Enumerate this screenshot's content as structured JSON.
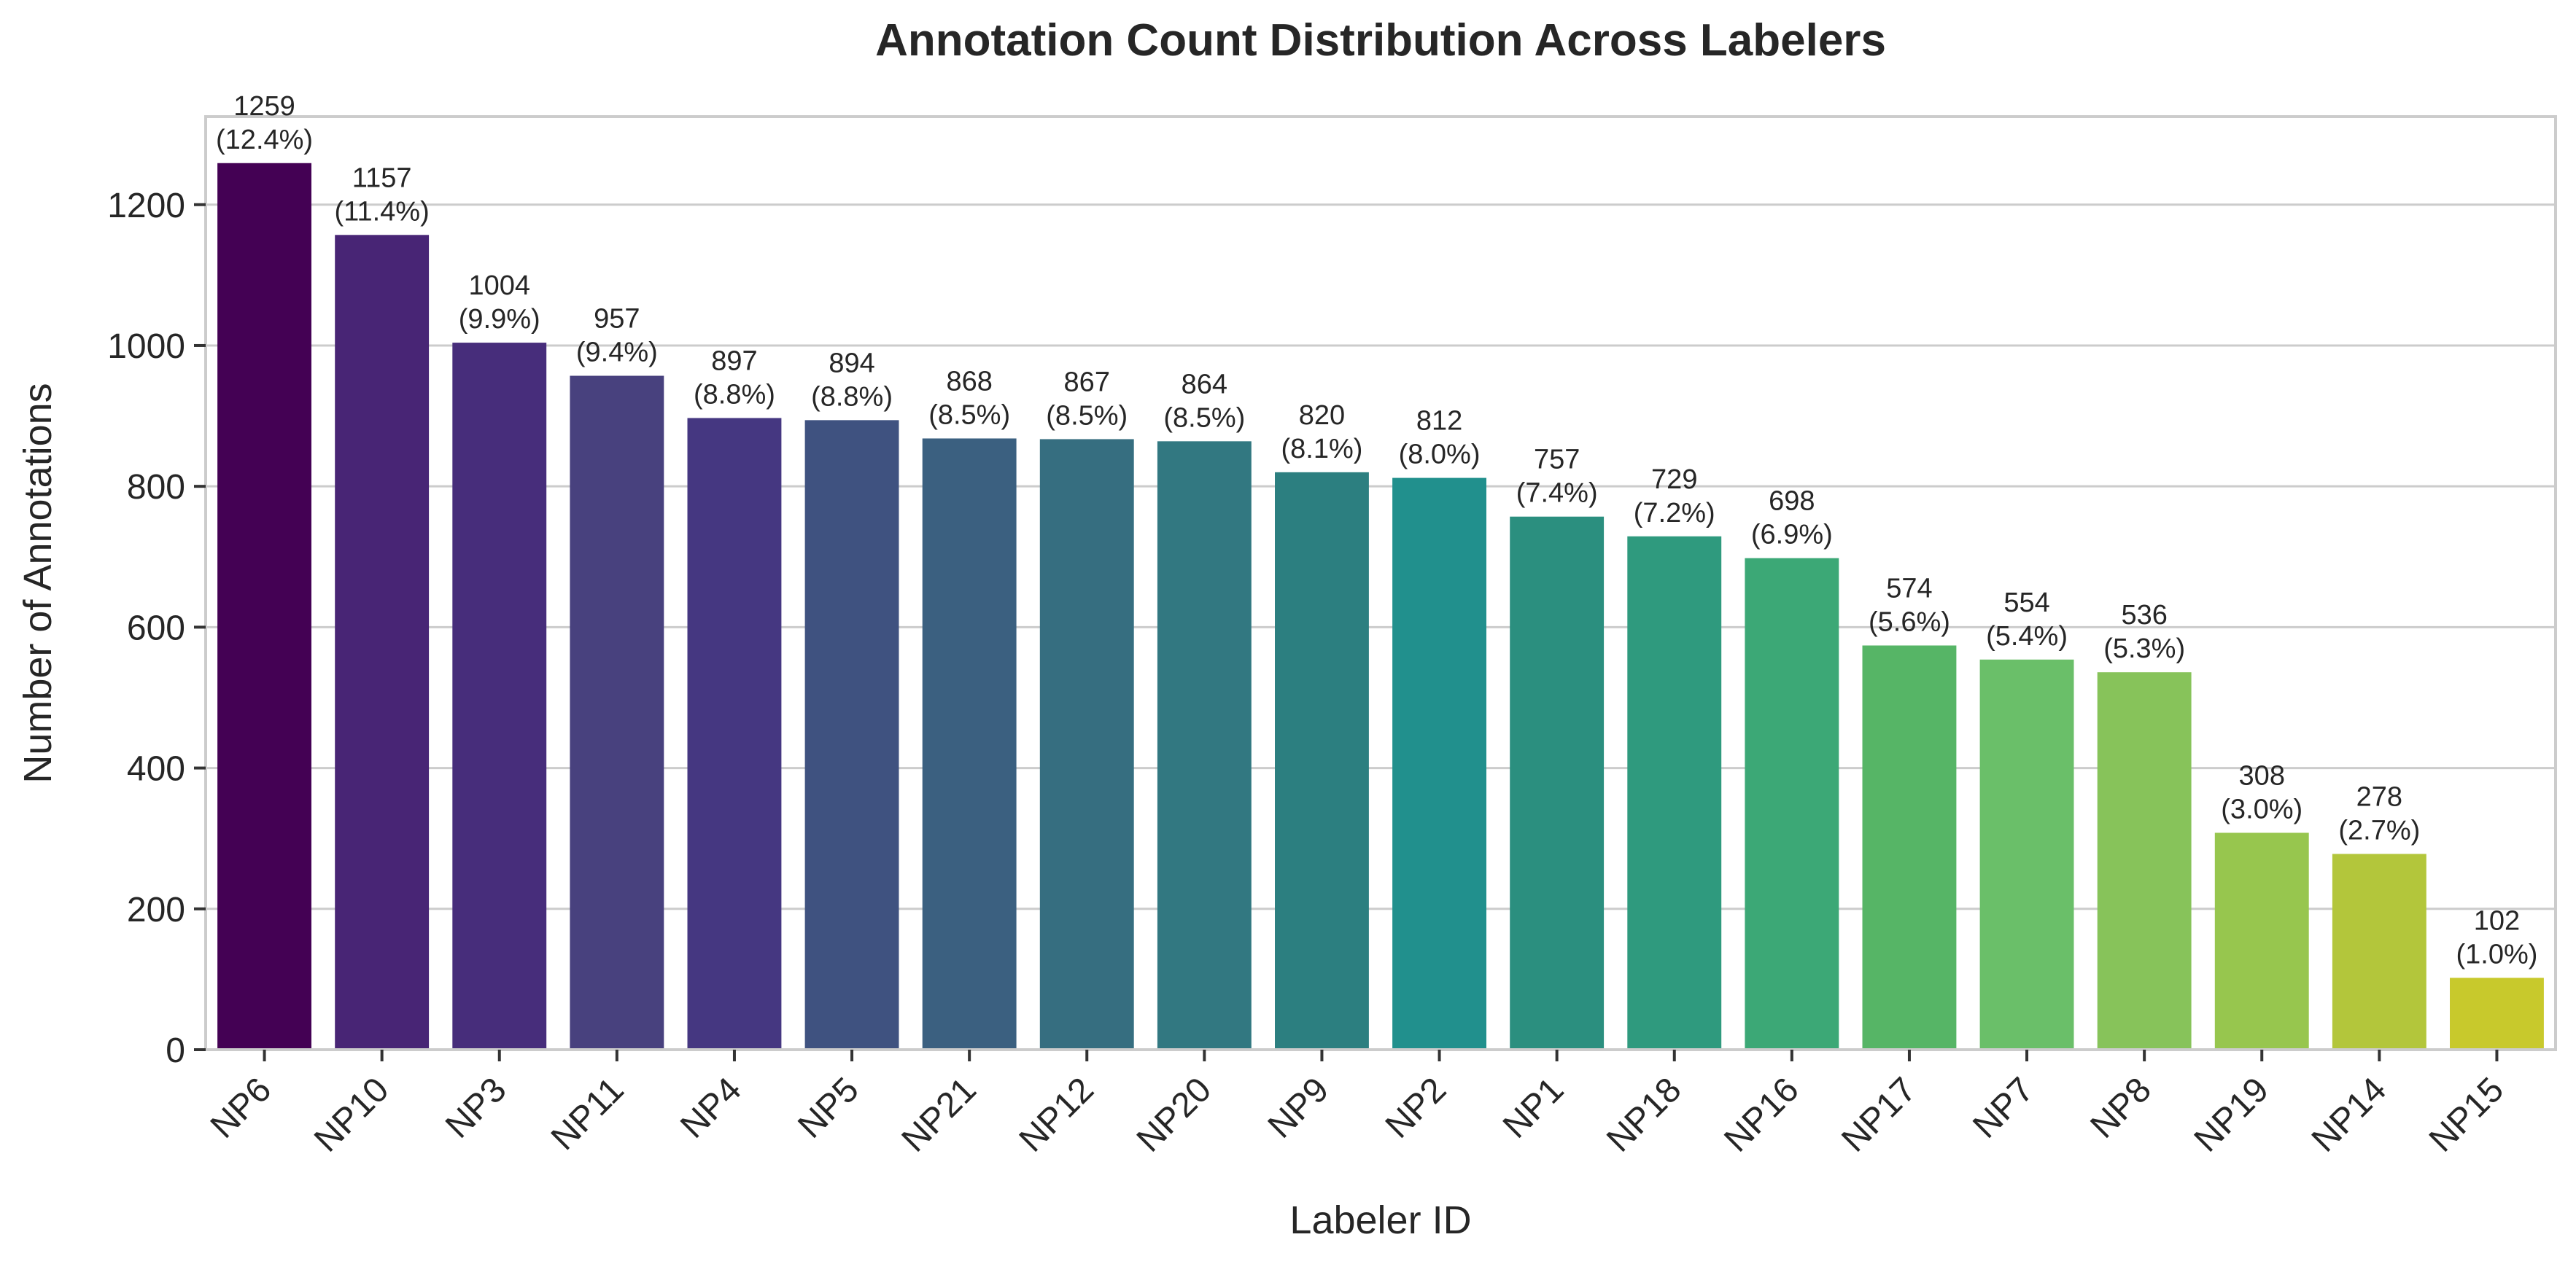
{
  "chart_data": {
    "type": "bar",
    "title": "Annotation Count Distribution Across Labelers",
    "xlabel": "Labeler ID",
    "ylabel": "Number of Annotations",
    "categories": [
      "NP6",
      "NP10",
      "NP3",
      "NP11",
      "NP4",
      "NP5",
      "NP21",
      "NP12",
      "NP20",
      "NP9",
      "NP2",
      "NP1",
      "NP18",
      "NP16",
      "NP17",
      "NP7",
      "NP8",
      "NP19",
      "NP14",
      "NP15"
    ],
    "values": [
      1259,
      1157,
      1004,
      957,
      897,
      894,
      868,
      867,
      864,
      820,
      812,
      757,
      729,
      698,
      574,
      554,
      536,
      308,
      278,
      102
    ],
    "percent_labels": [
      "(12.4%)",
      "(11.4%)",
      "(9.9%)",
      "(9.4%)",
      "(8.8%)",
      "(8.8%)",
      "(8.5%)",
      "(8.5%)",
      "(8.5%)",
      "(8.1%)",
      "(8.0%)",
      "(7.4%)",
      "(7.2%)",
      "(6.9%)",
      "(5.6%)",
      "(5.4%)",
      "(5.3%)",
      "(3.0%)",
      "(2.7%)",
      "(1.0%)"
    ],
    "colors": [
      "#440154",
      "#482575",
      "#472d7b",
      "#48417e",
      "#453781",
      "#3f5280",
      "#3b6080",
      "#366e80",
      "#327881",
      "#2c7f80",
      "#21908d",
      "#2b8f7f",
      "#2f9a7e",
      "#3ca876",
      "#56b566",
      "#6abf69",
      "#87c35a",
      "#97c64e",
      "#b3c63b",
      "#c8c92c"
    ],
    "ylim": [
      0,
      1325
    ],
    "yticks": [
      0,
      200,
      400,
      600,
      800,
      1000,
      1200
    ],
    "grid": true
  }
}
